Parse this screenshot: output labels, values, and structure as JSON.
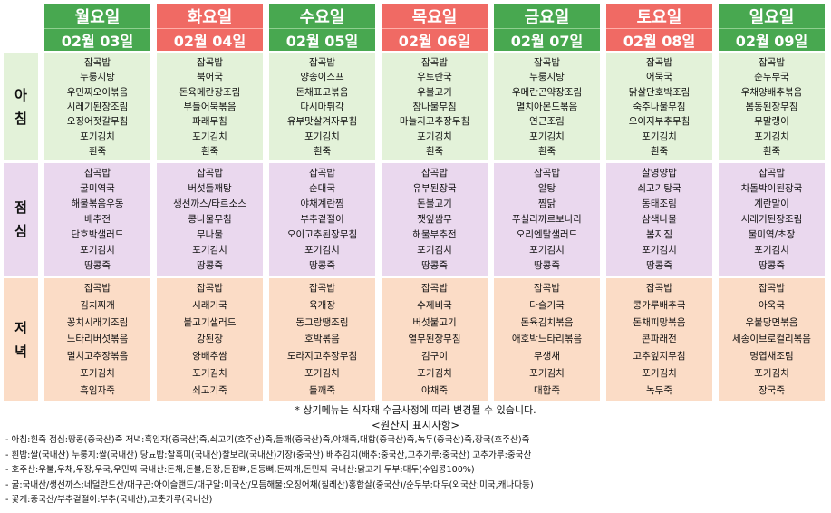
{
  "days": [
    {
      "name": "월요일",
      "date": "02월 03일",
      "color": "green"
    },
    {
      "name": "화요일",
      "date": "02월 04일",
      "color": "red"
    },
    {
      "name": "수요일",
      "date": "02월 05일",
      "color": "green"
    },
    {
      "name": "목요일",
      "date": "02월 06일",
      "color": "red"
    },
    {
      "name": "금요일",
      "date": "02월 07일",
      "color": "green"
    },
    {
      "name": "토요일",
      "date": "02월 08일",
      "color": "red"
    },
    {
      "name": "일요일",
      "date": "02월 09일",
      "color": "green"
    }
  ],
  "meals": [
    {
      "label": [
        "아",
        "침"
      ],
      "menus": [
        [
          "잡곡밥",
          "누룽지탕",
          "우민찌오이볶음",
          "시레기된장조림",
          "오징어젓갈무침",
          "포기김치",
          "흰죽"
        ],
        [
          "잡곡밥",
          "북어국",
          "돈육메란장조림",
          "부들어묵볶음",
          "파래무침",
          "포기김치",
          "흰죽"
        ],
        [
          "잡곡밥",
          "양송이스프",
          "돈채표고볶음",
          "다시마튀각",
          "유부맛살겨자무침",
          "포기김치",
          "흰죽"
        ],
        [
          "잡곡밥",
          "우토란국",
          "우불고기",
          "참나물무침",
          "마늘지고추장무침",
          "포기김치",
          "흰죽"
        ],
        [
          "잡곡밥",
          "누룽지탕",
          "우메란곤약장조림",
          "멸치아몬드볶음",
          "연근조림",
          "포기김치",
          "흰죽"
        ],
        [
          "잡곡밥",
          "어묵국",
          "닭살단호박조림",
          "숙주나물무침",
          "오이지부추무침",
          "포기김치",
          "흰죽"
        ],
        [
          "잡곡밥",
          "순두부국",
          "우채양배추볶음",
          "봄동된장무침",
          "무말랭이",
          "포기김치",
          "흰죽"
        ]
      ]
    },
    {
      "label": [
        "점",
        "심"
      ],
      "menus": [
        [
          "잡곡밥",
          "굴미역국",
          "해물볶음우동",
          "배추전",
          "단호박샐러드",
          "포기김치",
          "땅콩죽"
        ],
        [
          "잡곡밥",
          "버섯들깨탕",
          "생선까스/타르소스",
          "콩나물무침",
          "무나물",
          "포기김치",
          "땅콩죽"
        ],
        [
          "잡곡밥",
          "순대국",
          "야채계란찜",
          "부추겉절이",
          "오이고추된장무침",
          "포기김치",
          "땅콩죽"
        ],
        [
          "잡곡밥",
          "유부된장국",
          "돈불고기",
          "깻잎쌈무",
          "해물부추전",
          "포기김치",
          "땅콩죽"
        ],
        [
          "잡곡밥",
          "알탕",
          "찜닭",
          "푸실리까르보나라",
          "오리엔탈샐러드",
          "포기김치",
          "땅콩죽"
        ],
        [
          "찰영양밥",
          "쇠고기탕국",
          "동태조림",
          "삼색나물",
          "봄지짐",
          "포기김치",
          "땅콩죽"
        ],
        [
          "잡곡밥",
          "차돌박이된장국",
          "계란말이",
          "시래기된장조림",
          "물미역/초장",
          "포기김치",
          "땅콩죽"
        ]
      ]
    },
    {
      "label": [
        "저",
        "녁"
      ],
      "menus": [
        [
          "잡곡밥",
          "김치찌개",
          "꽁치시래기조림",
          "느타리버섯볶음",
          "멸치고추장볶음",
          "포기김치",
          "흑임자죽"
        ],
        [
          "잡곡밥",
          "시래기국",
          "불고기샐러드",
          "강된장",
          "양배추쌈",
          "포기김치",
          "쇠고기죽"
        ],
        [
          "잡곡밥",
          "육개장",
          "동그랑땡조림",
          "호박볶음",
          "도라지고추장무침",
          "포기김치",
          "들깨죽"
        ],
        [
          "잡곡밥",
          "수제비국",
          "버섯불고기",
          "열무된장무침",
          "김구이",
          "포기김치",
          "야채죽"
        ],
        [
          "잡곡밥",
          "다슬기국",
          "돈육김치볶음",
          "애호박느타리볶음",
          "무생채",
          "포기김치",
          "대합죽"
        ],
        [
          "잡곡밥",
          "콩가루배추국",
          "돈채피망볶음",
          "콘파래전",
          "고추잎지무침",
          "포기김치",
          "녹두죽"
        ],
        [
          "잡곡밥",
          "아욱국",
          "우불당면볶음",
          "세송이브로컬리볶음",
          "명엽채조림",
          "포기김치",
          "장국죽"
        ]
      ]
    }
  ],
  "note": "* 상기메뉴는 식자재 수급사정에 따라 변경될 수 있습니다.",
  "origin_title": "<원산지 표시사항>",
  "origin_lines": [
    "- 아침:흰죽 점심:땅콩(중국산)죽 저녁:흑임자(중국산)죽,쇠고기(호주산)죽,들깨(중국산)죽,야채죽,대합(중국산)죽,녹두(중국산)죽,장국(호주산)죽",
    "- 흰밥:쌀(국내산) 누룽지:쌀(국내산) 당뇨밥:찰흑미(국내산)찰보리(국내산)기장(중국산) 배추김치(배추:중국산,고추가루:중국산) 고추가루:중국산",
    "- 호주산:우불,우채,우장,우국,우민찌 국내산:돈채,돈불,돈장,돈잡뼈,돈등뼈,돈찌개,돈민찌 국내산:닭고기 두부:대두(수입콩100%)",
    "- 굴:국내산/생선까스:네덜란드산/대구곤:아이슬랜드/대구알:미국산/모듬해물:오징어채(칠레산)홍합살(중국산)/순두부:대두(외국산:미국,캐나다등)",
    "- 꽃게:중국산/부추겉절이:부추(국내산),고춧가루(국내산)"
  ]
}
